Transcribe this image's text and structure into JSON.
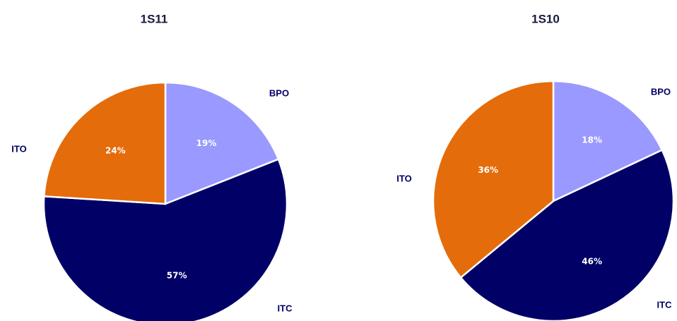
{
  "chart_data": [
    {
      "type": "pie",
      "title": "1S11",
      "categories": [
        "BPO",
        "ITC",
        "ITO"
      ],
      "values": [
        19,
        57,
        24
      ],
      "value_labels": [
        "19%",
        "57%",
        "24%"
      ],
      "colors": [
        "#9999ff",
        "#000066",
        "#e46c0a"
      ]
    },
    {
      "type": "pie",
      "title": "1S10",
      "categories": [
        "BPO",
        "ITC",
        "ITO"
      ],
      "values": [
        18,
        46,
        36
      ],
      "value_labels": [
        "18%",
        "46%",
        "36%"
      ],
      "colors": [
        "#9999ff",
        "#000066",
        "#e46c0a"
      ]
    }
  ]
}
